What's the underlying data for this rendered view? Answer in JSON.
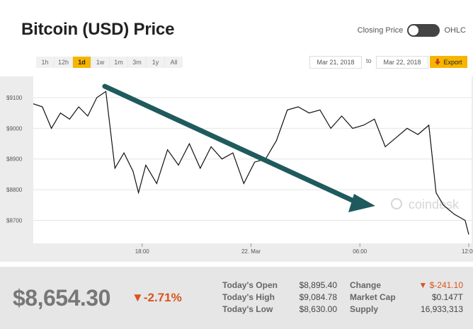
{
  "header": {
    "title": "Bitcoin (USD) Price",
    "toggle_left": "Closing Price",
    "toggle_right": "OHLC"
  },
  "range_buttons": [
    "1h",
    "12h",
    "1d",
    "1w",
    "1m",
    "3m",
    "1y",
    "All"
  ],
  "range_active": "1d",
  "date_range": {
    "from": "Mar 21, 2018",
    "to_label": "to",
    "to": "Mar 22, 2018",
    "export_label": "Export",
    "export_icon": "download-arrow-icon"
  },
  "colors": {
    "accent": "#f7b500",
    "line": "#111111",
    "arrow": "#1f5a5c",
    "down": "#d9541e"
  },
  "chart_data": {
    "type": "line",
    "y_ticks": [
      "$9100",
      "$9000",
      "$8900",
      "$8800",
      "$8700"
    ],
    "y_tick_values": [
      9100,
      9000,
      8900,
      8800,
      8700
    ],
    "x_ticks": [
      "18:00",
      "22. Mar",
      "06:00",
      "12:00"
    ],
    "x_tick_hours": [
      6,
      12,
      18,
      24
    ],
    "ylim": [
      8625,
      9160
    ],
    "grid": true,
    "watermark": "coindesk",
    "annotation": "downward trend arrow",
    "series": [
      {
        "hours": [
          0,
          0.5,
          1,
          1.5,
          2,
          2.5,
          3,
          3.5,
          4,
          4.5,
          5,
          5.5,
          5.8,
          6.2,
          6.8,
          7.4,
          8,
          8.6,
          9.2,
          9.8,
          10.4,
          11,
          11.6,
          12.2,
          12.8,
          13.4,
          14,
          14.6,
          15.2,
          15.8,
          16.4,
          17,
          17.6,
          18.2,
          18.8,
          19.4,
          20,
          20.6,
          21.2,
          21.8,
          22.2,
          22.6,
          23.2,
          23.8,
          24
        ],
        "values": [
          9080,
          9070,
          9000,
          9050,
          9030,
          9070,
          9040,
          9100,
          9120,
          8870,
          8920,
          8860,
          8790,
          8880,
          8820,
          8930,
          8880,
          8950,
          8870,
          8940,
          8900,
          8920,
          8820,
          8890,
          8900,
          8960,
          9060,
          9070,
          9050,
          9060,
          9000,
          9040,
          9000,
          9010,
          9030,
          8940,
          8970,
          9000,
          8980,
          9010,
          8790,
          8750,
          8720,
          8700,
          8654
        ]
      }
    ]
  },
  "footer": {
    "price": "$8,654.30",
    "change_pct": "▼-2.71%",
    "todays_open_label": "Today's Open",
    "todays_open": "$8,895.40",
    "todays_high_label": "Today's High",
    "todays_high": "$9,084.78",
    "todays_low_label": "Today's Low",
    "todays_low": "$8,630.00",
    "change_label": "Change",
    "change": "▼ $-241.10",
    "market_cap_label": "Market Cap",
    "market_cap": "$0.147T",
    "supply_label": "Supply",
    "supply": "16,933,313"
  }
}
